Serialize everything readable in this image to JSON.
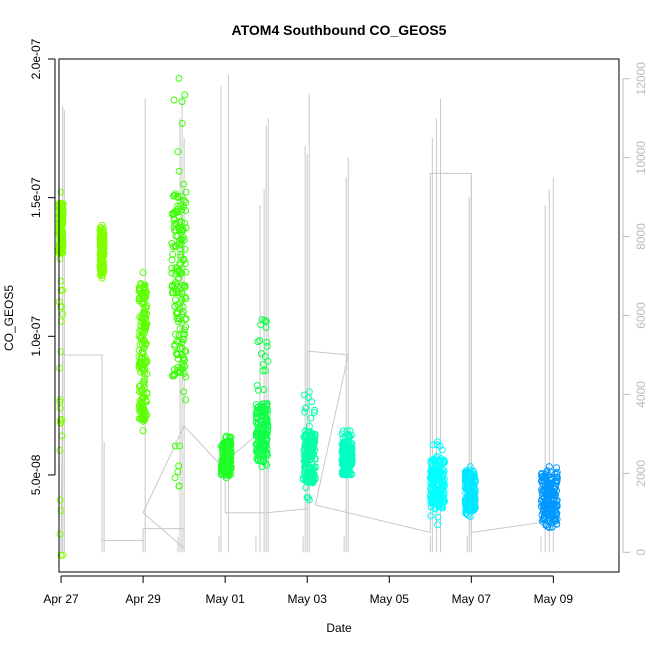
{
  "chart_data": {
    "type": "scatter",
    "title": "ATOM4 Southbound CO_GEOS5",
    "xlabel": "Date",
    "ylabel": "CO_GEOS5",
    "x_axis": {
      "min_day": -0.05,
      "max_day": 13.6,
      "ticks": [
        {
          "day": 0,
          "label": "Apr 27"
        },
        {
          "day": 2,
          "label": "Apr 29"
        },
        {
          "day": 4,
          "label": "May 01"
        },
        {
          "day": 6,
          "label": "May 03"
        },
        {
          "day": 8,
          "label": "May 05"
        },
        {
          "day": 10,
          "label": "May 07"
        },
        {
          "day": 12,
          "label": "May 09"
        }
      ]
    },
    "y_axis": {
      "min": 1.5e-08,
      "max": 2e-07,
      "ticks": [
        {
          "value": 5e-08,
          "label": "5.0e-08"
        },
        {
          "value": 1e-07,
          "label": "1.0e-07"
        },
        {
          "value": 1.5e-07,
          "label": "1.5e-07"
        },
        {
          "value": 2e-07,
          "label": "2.0e-07"
        }
      ]
    },
    "y2_axis": {
      "min": -500,
      "max": 12500,
      "color": "#bbbbbb",
      "ticks": [
        {
          "value": 0,
          "label": "0"
        },
        {
          "value": 2000,
          "label": "2000"
        },
        {
          "value": 4000,
          "label": "4000"
        },
        {
          "value": 6000,
          "label": "6000"
        },
        {
          "value": 8000,
          "label": "8000"
        },
        {
          "value": 10000,
          "label": "10000"
        },
        {
          "value": 12000,
          "label": "12000"
        }
      ]
    },
    "co_clusters": [
      {
        "day_start": -0.05,
        "day_end": 0.05,
        "y_low": 2.1e-08,
        "y_high": 1.52e-07,
        "core_low": 1.3e-07,
        "core_high": 1.48e-07,
        "color": "#80ff00"
      },
      {
        "day_start": 0.95,
        "day_end": 1.05,
        "y_low": 1.21e-07,
        "y_high": 1.4e-07,
        "core_low": 1.23e-07,
        "core_high": 1.38e-07,
        "color": "#80ff00"
      },
      {
        "day_start": 1.9,
        "day_end": 2.1,
        "y_low": 6.6e-08,
        "y_high": 1.23e-07,
        "core_low": 7e-08,
        "core_high": 1.2e-07,
        "color": "#5cff00"
      },
      {
        "day_start": 2.7,
        "day_end": 3.05,
        "y_low": 4.6e-08,
        "y_high": 1.93e-07,
        "core_low": 8.5e-08,
        "core_high": 1.52e-07,
        "color": "#3aff00"
      },
      {
        "day_start": 3.9,
        "day_end": 4.15,
        "y_low": 4.9e-08,
        "y_high": 6.4e-08,
        "core_low": 5e-08,
        "core_high": 6.2e-08,
        "color": "#20ff28"
      },
      {
        "day_start": 4.75,
        "day_end": 5.05,
        "y_low": 5.3e-08,
        "y_high": 1.06e-07,
        "core_low": 5.5e-08,
        "core_high": 7.6e-08,
        "color": "#10ff48"
      },
      {
        "day_start": 5.9,
        "day_end": 6.2,
        "y_low": 4.1e-08,
        "y_high": 8e-08,
        "core_low": 4.7e-08,
        "core_high": 6.6e-08,
        "color": "#08ffa8"
      },
      {
        "day_start": 6.85,
        "day_end": 7.1,
        "y_low": 5e-08,
        "y_high": 6.6e-08,
        "core_low": 5e-08,
        "core_high": 6.2e-08,
        "color": "#00ffc0"
      },
      {
        "day_start": 9.0,
        "day_end": 9.35,
        "y_low": 3.2e-08,
        "y_high": 6.2e-08,
        "core_low": 3.8e-08,
        "core_high": 5.6e-08,
        "color": "#00ffff"
      },
      {
        "day_start": 9.85,
        "day_end": 10.1,
        "y_low": 3.5e-08,
        "y_high": 5.3e-08,
        "core_low": 3.7e-08,
        "core_high": 5.1e-08,
        "color": "#00e8ff"
      },
      {
        "day_start": 11.7,
        "day_end": 12.1,
        "y_low": 3.1e-08,
        "y_high": 5.3e-08,
        "core_low": 3.2e-08,
        "core_high": 5.1e-08,
        "color": "#0098ff"
      }
    ],
    "altitude_spikes": [
      {
        "day": 0.0,
        "alt": 500
      },
      {
        "day": 0.04,
        "alt": 11300
      },
      {
        "day": 0.08,
        "alt": 11200
      },
      {
        "day": 1.0,
        "alt": 300
      },
      {
        "day": 1.05,
        "alt": 2800
      },
      {
        "day": 2.0,
        "alt": 300
      },
      {
        "day": 2.05,
        "alt": 11500
      },
      {
        "day": 2.85,
        "alt": 400
      },
      {
        "day": 2.9,
        "alt": 11000
      },
      {
        "day": 2.95,
        "alt": 11600
      },
      {
        "day": 3.0,
        "alt": 10500
      },
      {
        "day": 3.85,
        "alt": 400
      },
      {
        "day": 3.9,
        "alt": 11800
      },
      {
        "day": 4.08,
        "alt": 12100
      },
      {
        "day": 4.75,
        "alt": 400
      },
      {
        "day": 4.85,
        "alt": 8800
      },
      {
        "day": 4.95,
        "alt": 9200
      },
      {
        "day": 5.0,
        "alt": 10800
      },
      {
        "day": 5.05,
        "alt": 11000
      },
      {
        "day": 5.9,
        "alt": 400
      },
      {
        "day": 5.95,
        "alt": 10300
      },
      {
        "day": 6.0,
        "alt": 10100
      },
      {
        "day": 6.05,
        "alt": 11600
      },
      {
        "day": 6.9,
        "alt": 400
      },
      {
        "day": 6.95,
        "alt": 9500
      },
      {
        "day": 7.0,
        "alt": 10000
      },
      {
        "day": 9.0,
        "alt": 400
      },
      {
        "day": 9.05,
        "alt": 10500
      },
      {
        "day": 9.15,
        "alt": 11000
      },
      {
        "day": 9.25,
        "alt": 11500
      },
      {
        "day": 9.9,
        "alt": 400
      },
      {
        "day": 9.95,
        "alt": 9000
      },
      {
        "day": 10.0,
        "alt": 9500
      },
      {
        "day": 11.7,
        "alt": 400
      },
      {
        "day": 11.8,
        "alt": 8800
      },
      {
        "day": 11.9,
        "alt": 9200
      },
      {
        "day": 12.0,
        "alt": 9500
      }
    ],
    "altitude_track": [
      {
        "day": 0.0,
        "alt": 0
      },
      {
        "day": 0.04,
        "alt": 5000
      },
      {
        "day": 1.0,
        "alt": 5000
      },
      {
        "day": 1.0,
        "alt": 300
      },
      {
        "day": 2.0,
        "alt": 300
      },
      {
        "day": 2.0,
        "alt": 600
      },
      {
        "day": 3.0,
        "alt": 600
      },
      {
        "day": 3.0,
        "alt": 100
      },
      {
        "day": 2.0,
        "alt": 1000
      },
      {
        "day": 3.0,
        "alt": 3200
      },
      {
        "day": 3.9,
        "alt": 2200
      },
      {
        "day": 4.0,
        "alt": 2300
      },
      {
        "day": 4.8,
        "alt": 3000
      },
      {
        "day": 4.0,
        "alt": 2300
      },
      {
        "day": 4.0,
        "alt": 1000
      },
      {
        "day": 5.0,
        "alt": 1000
      },
      {
        "day": 6.0,
        "alt": 1100
      },
      {
        "day": 6.0,
        "alt": 5100
      },
      {
        "day": 7.0,
        "alt": 5000
      },
      {
        "day": 6.2,
        "alt": 1200
      },
      {
        "day": 9.0,
        "alt": 500
      },
      {
        "day": 9.0,
        "alt": 9600
      },
      {
        "day": 10.0,
        "alt": 9600
      },
      {
        "day": 10.0,
        "alt": 500
      },
      {
        "day": 12.0,
        "alt": 800
      }
    ]
  }
}
